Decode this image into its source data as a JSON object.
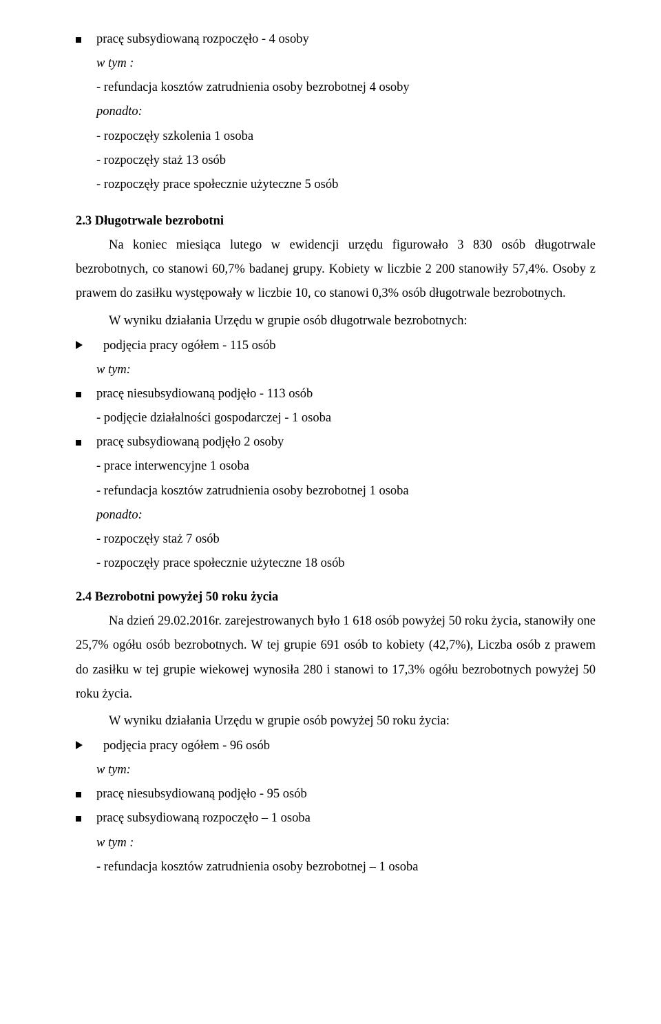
{
  "s21": {
    "b1": "pracę subsydiowaną rozpoczęło - 4 osoby",
    "wtym": "w tym :",
    "l1": "- refundacja kosztów zatrudnienia osoby bezrobotnej 4 osoby",
    "ponadto": "ponadto:",
    "l2": "- rozpoczęły szkolenia 1 osoba",
    "l3": "- rozpoczęły staż 13 osób",
    "l4": "- rozpoczęły prace społecznie użyteczne 5 osób"
  },
  "s23": {
    "heading": "2.3 Długotrwale bezrobotni",
    "p1": "Na koniec miesiąca lutego w ewidencji urzędu figurowało 3 830 osób długotrwale bezrobotnych, co stanowi 60,7% badanej grupy. Kobiety w liczbie 2 200 stanowiły 57,4%. Osoby z prawem do zasiłku występowały w liczbie 10, co stanowi 0,3% osób długotrwale bezrobotnych.",
    "p2": "W wyniku działania Urzędu w grupie osób długotrwale bezrobotnych:",
    "tri1": "podjęcia pracy ogółem - 115 osób",
    "wtym": "w tym:",
    "sq1": "pracę niesubsydiowaną podjęło -  113 osób",
    "sq1_sub": "- podjęcie działalności gospodarczej - 1 osoba",
    "sq2": "pracę subsydiowaną podjęło 2 osoby",
    "sq2_sub1": "- prace interwencyjne 1 osoba",
    "sq2_sub2": "- refundacja kosztów zatrudnienia osoby bezrobotnej 1 osoba",
    "ponadto": "ponadto:",
    "pn1": "-  rozpoczęły staż 7 osób",
    "pn2": "- rozpoczęły prace społecznie użyteczne  18 osób"
  },
  "s24": {
    "heading": "2.4 Bezrobotni powyżej 50 roku życia",
    "p1": "Na dzień 29.02.2016r. zarejestrowanych było 1 618 osób powyżej 50 roku życia, stanowiły one 25,7% ogółu osób bezrobotnych. W tej grupie 691 osób to kobiety (42,7%), Liczba osób z prawem do zasiłku w tej grupie wiekowej wynosiła 280 i stanowi to 17,3% ogółu bezrobotnych powyżej 50 roku życia.",
    "p2": "W wyniku działania Urzędu w grupie osób powyżej 50 roku życia:",
    "tri1": "podjęcia pracy ogółem - 96 osób",
    "wtym": "w tym:",
    "sq1": "pracę niesubsydiowaną podjęło - 95 osób",
    "sq2": "pracę subsydiowaną rozpoczęło – 1 osoba",
    "wtym2": "w tym :",
    "sq2_sub": "- refundacja kosztów zatrudnienia osoby bezrobotnej – 1 osoba"
  }
}
